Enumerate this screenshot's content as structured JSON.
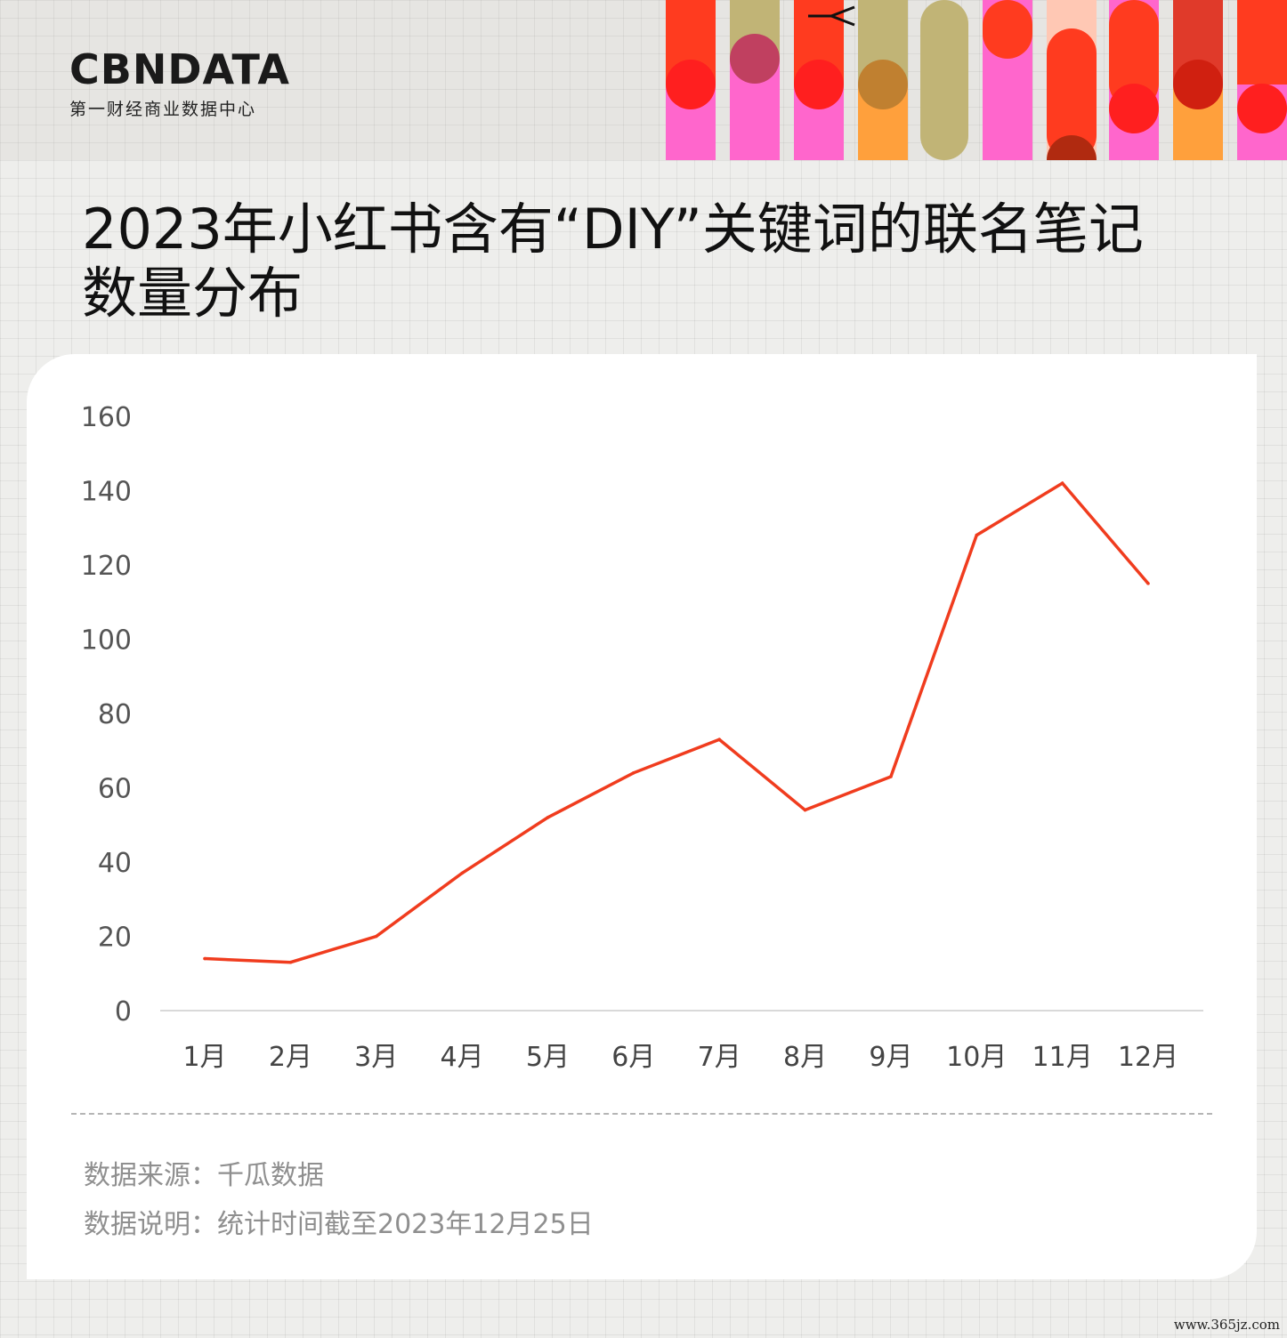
{
  "header": {
    "logo_text": "CBNDATA",
    "logo_sub": "第一财经商业数据中心"
  },
  "title": "2023年小红书含有“DIY”关键词的联名笔记数量分布",
  "chart_data": {
    "type": "line",
    "categories": [
      "1月",
      "2月",
      "3月",
      "4月",
      "5月",
      "6月",
      "7月",
      "8月",
      "9月",
      "10月",
      "11月",
      "12月"
    ],
    "values": [
      14,
      13,
      20,
      37,
      52,
      64,
      73,
      54,
      63,
      128,
      142,
      115
    ],
    "ylim": [
      0,
      160
    ],
    "yticks": [
      0,
      20,
      40,
      60,
      80,
      100,
      120,
      140,
      160
    ],
    "xlabel": "",
    "ylabel": "",
    "line_color": "#f03c1e",
    "grid": false,
    "legend": "none"
  },
  "notes": {
    "source": "数据来源：千瓜数据",
    "description": "数据说明：统计时间截至2023年12月25日"
  },
  "site_watermark": "www.365jz.com",
  "colors": {
    "accent": "#f03c1e",
    "text": "#111111",
    "muted": "#8f8f8f"
  }
}
